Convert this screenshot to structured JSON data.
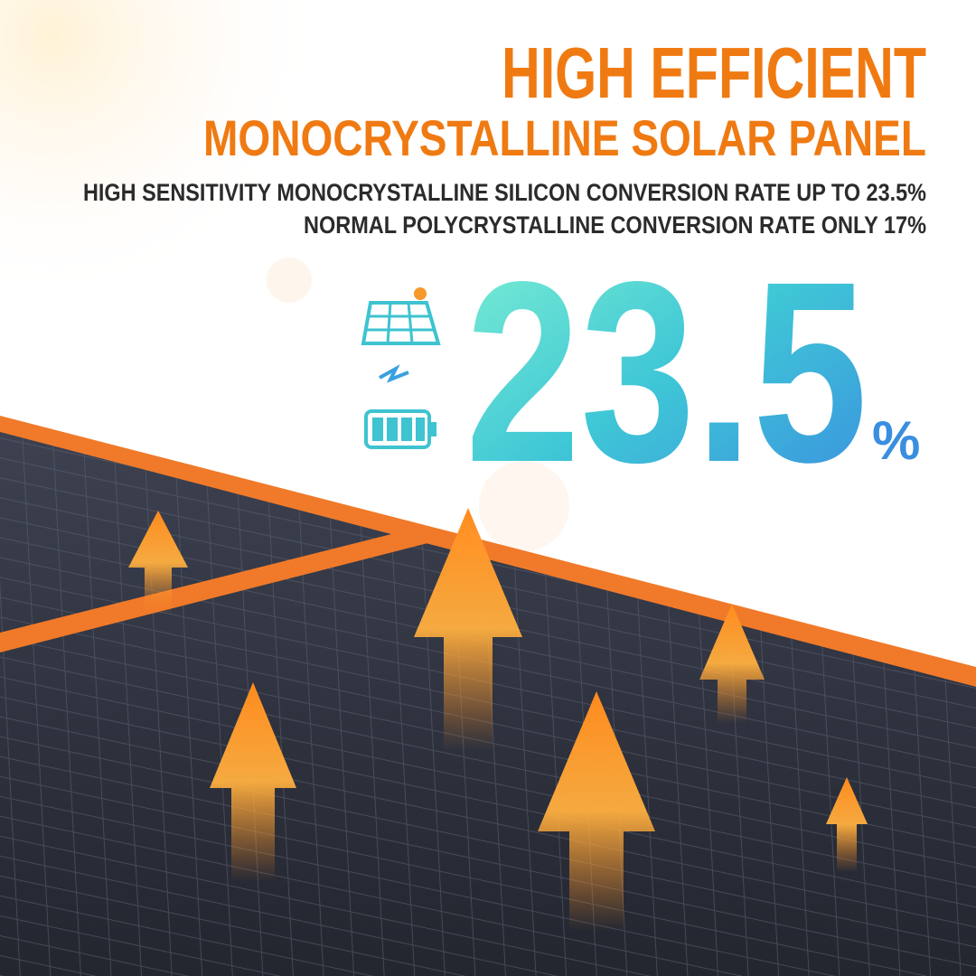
{
  "headline": {
    "line1": "HIGH EFFICIENT",
    "line2": "MONOCRYSTALLINE SOLAR PANEL"
  },
  "subtitle": {
    "line1": "HIGH SENSITIVITY MONOCRYSTALLINE SILICON CONVERSION RATE UP TO 23.5%",
    "line2": "NORMAL POLYCRYSTALLINE CONVERSION RATE ONLY 17%"
  },
  "highlight": {
    "number": "23.5",
    "unit": "%"
  }
}
